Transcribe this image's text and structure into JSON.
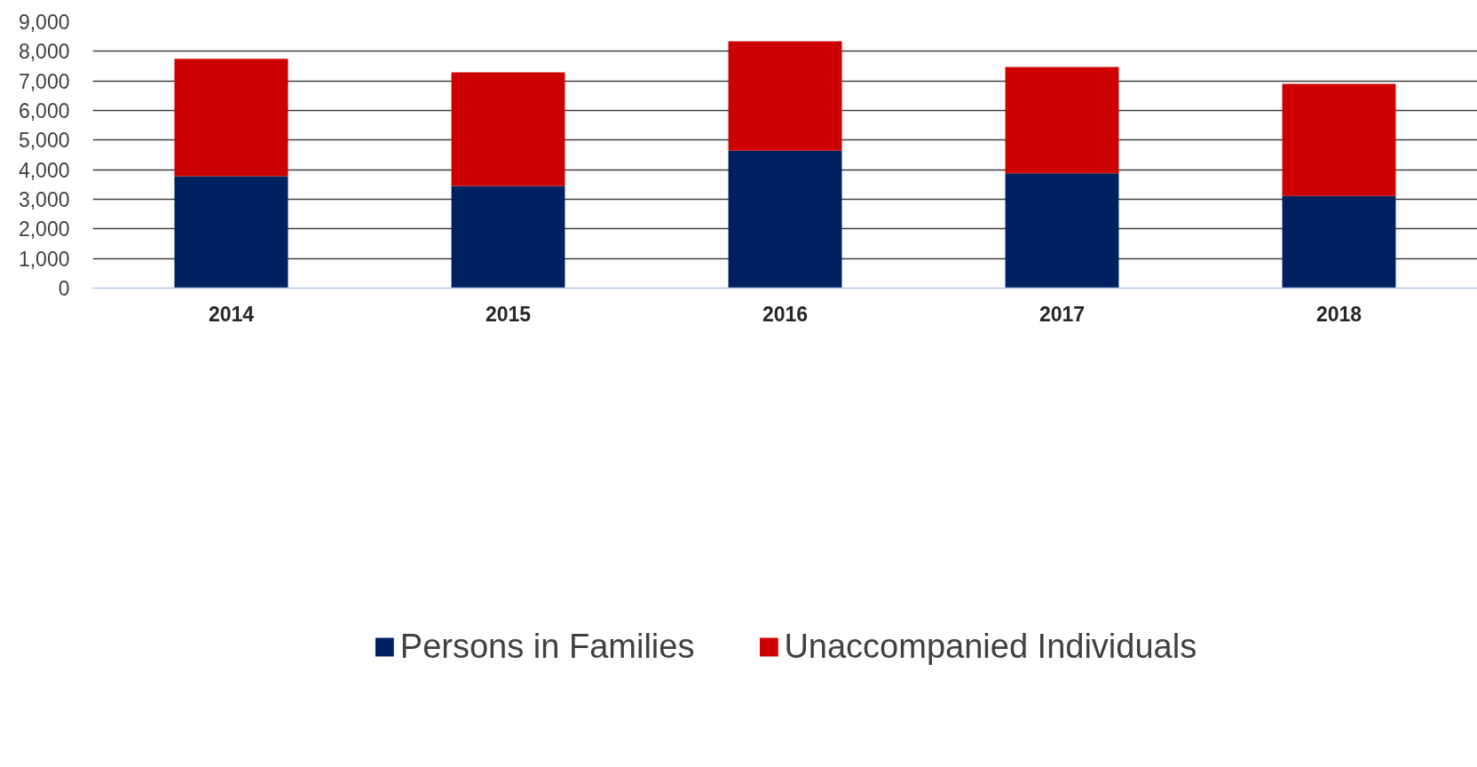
{
  "chart_data": {
    "type": "bar",
    "stacked": true,
    "categories": [
      "2014",
      "2015",
      "2016",
      "2017",
      "2018"
    ],
    "series": [
      {
        "name": "Persons in Families",
        "color": "#002060",
        "values": [
          3780,
          3450,
          4640,
          3880,
          3110
        ]
      },
      {
        "name": "Unaccompanied Individuals",
        "color": "#cc0000",
        "values": [
          3970,
          3840,
          3700,
          3590,
          3790
        ]
      }
    ],
    "ylim": [
      0,
      9000
    ],
    "yticks": [
      {
        "value": 0,
        "label": "0"
      },
      {
        "value": 1000,
        "label": "1,000"
      },
      {
        "value": 2000,
        "label": "2,000"
      },
      {
        "value": 3000,
        "label": "3,000"
      },
      {
        "value": 4000,
        "label": "4,000"
      },
      {
        "value": 5000,
        "label": "5,000"
      },
      {
        "value": 6000,
        "label": "6,000"
      },
      {
        "value": 7000,
        "label": "7,000"
      },
      {
        "value": 8000,
        "label": "8,000"
      },
      {
        "value": 9000,
        "label": "9,000"
      }
    ],
    "grid": "y",
    "legend": "bottom"
  }
}
